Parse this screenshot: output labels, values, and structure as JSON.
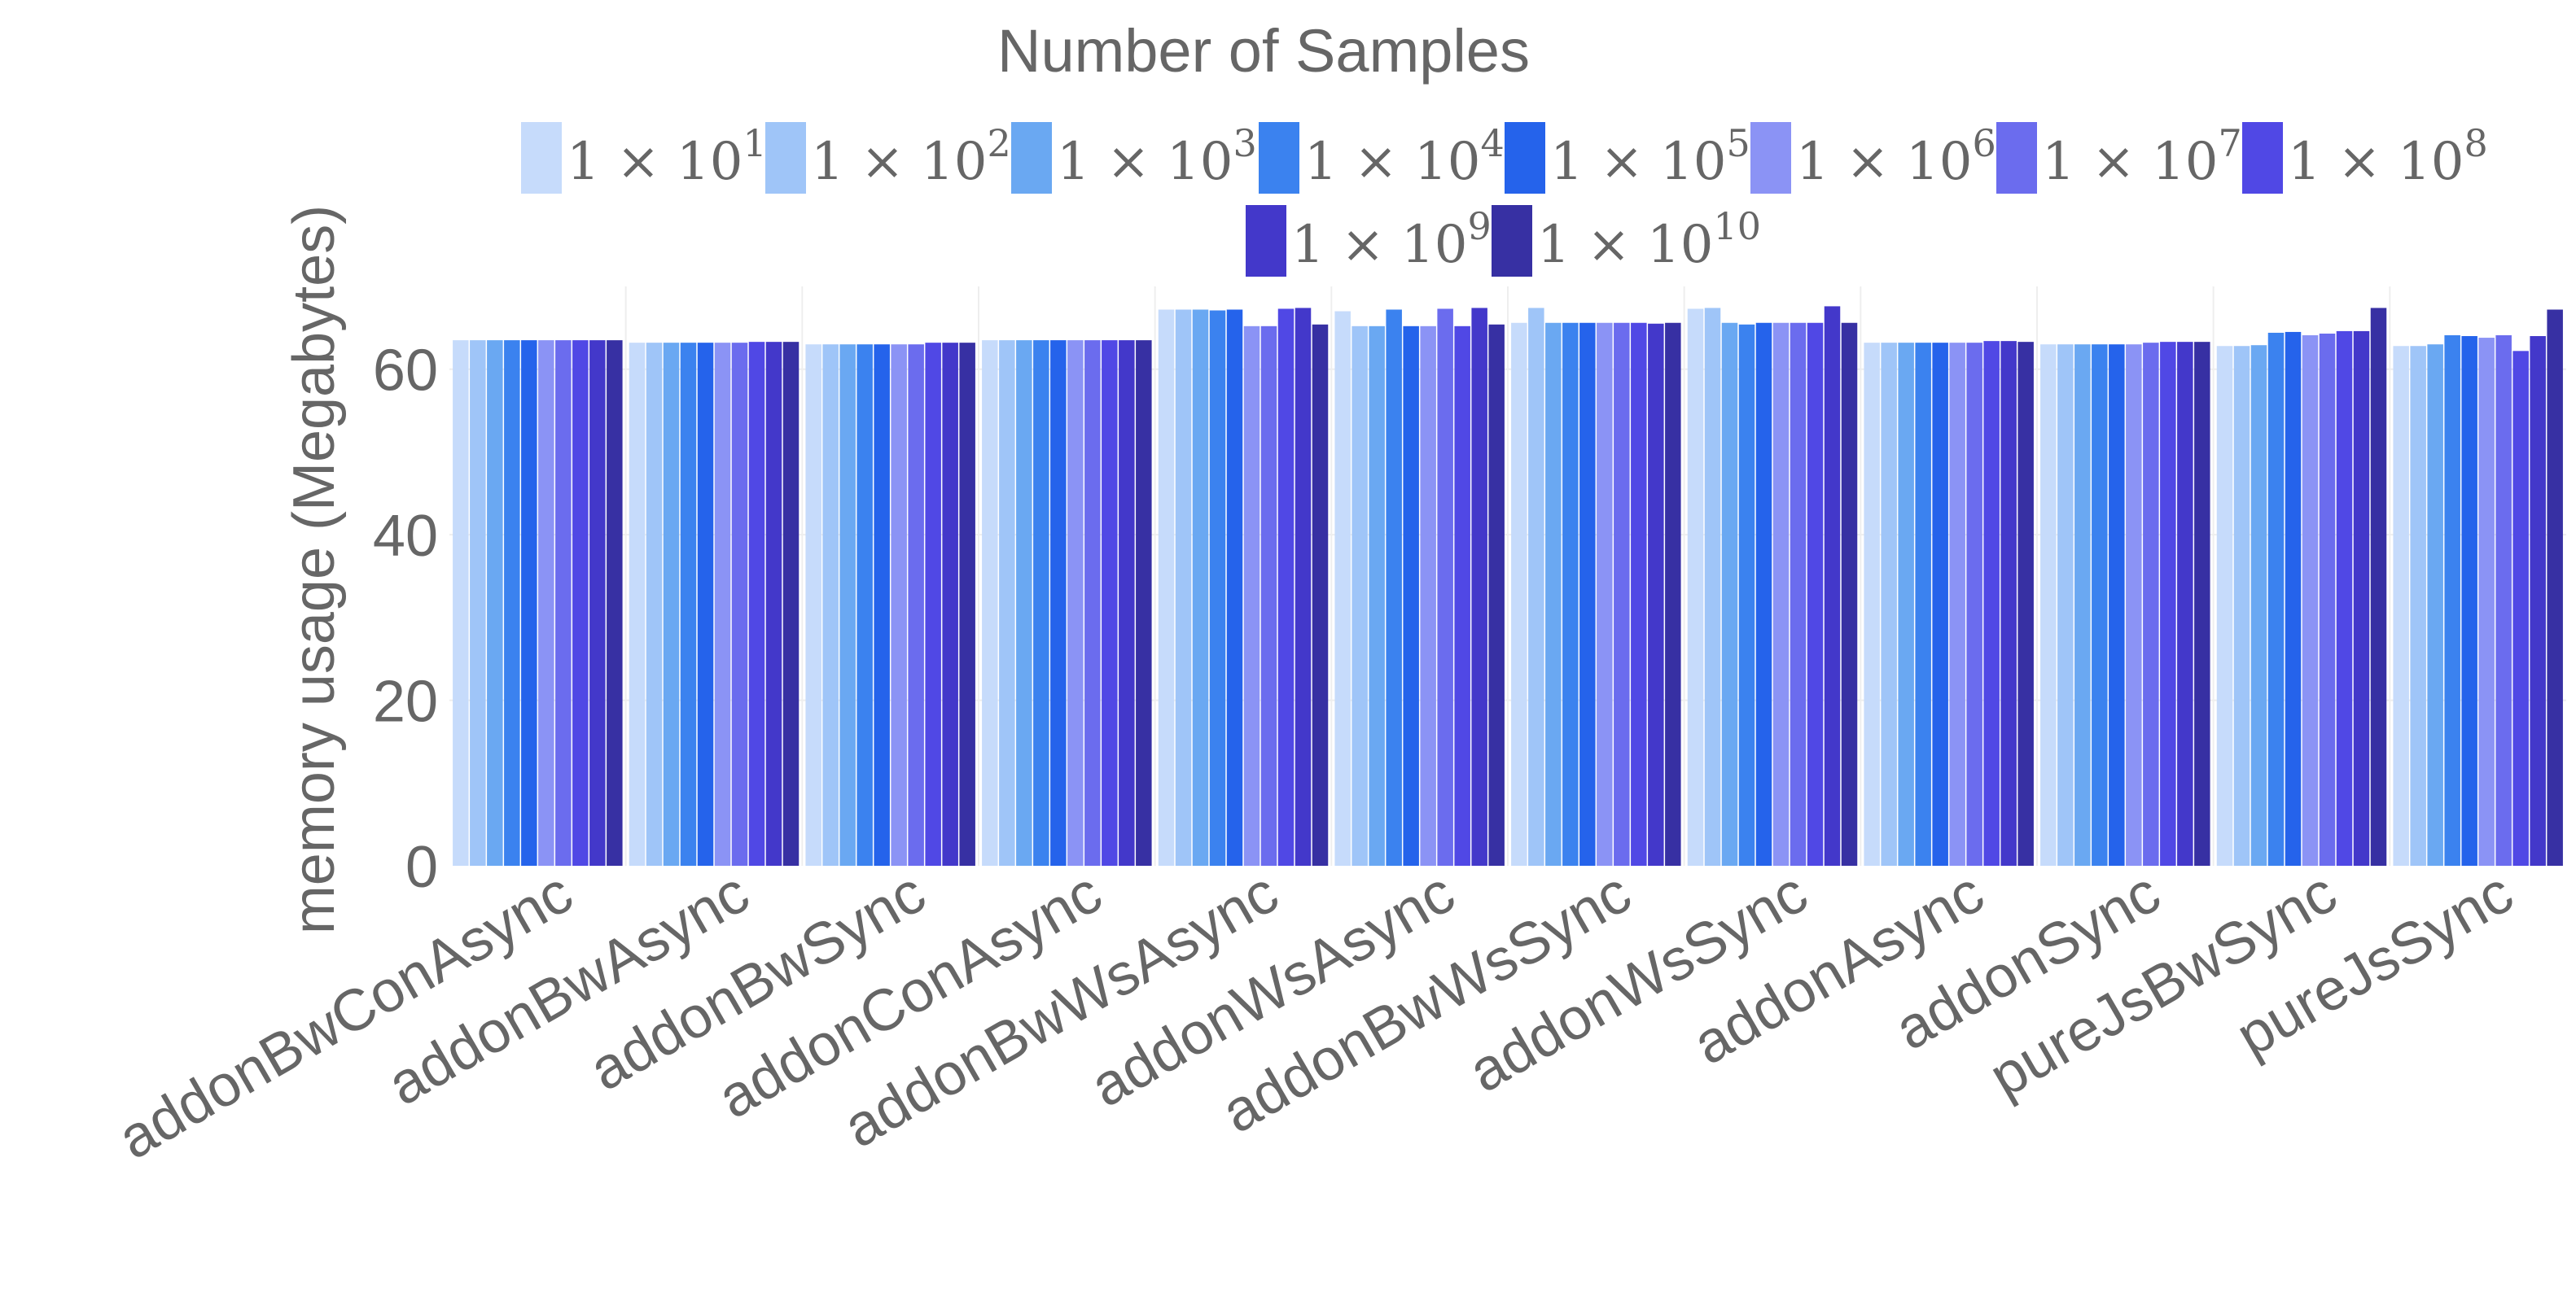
{
  "chart_data": {
    "type": "bar",
    "title": "",
    "legend_title": "Number of Samples",
    "xlabel": "",
    "ylabel": "memory usage (Megabytes)",
    "ylim": [
      0,
      70
    ],
    "yticks": [
      0,
      20,
      40,
      60
    ],
    "grid": true,
    "legend_position": "top",
    "categories": [
      "addonBwConAsync",
      "addonBwAsync",
      "addonBwSync",
      "addonConAsync",
      "addonBwWsAsync",
      "addonWsAsync",
      "addonBwWsSync",
      "addonWsSync",
      "addonAsync",
      "addonSync",
      "pureJsBwSync",
      "pureJsSync"
    ],
    "series": [
      {
        "name": "1 × 10",
        "exponent": "1",
        "color": "#c6dbfb",
        "values": [
          63.5,
          63.2,
          63.0,
          63.5,
          67.2,
          67.0,
          65.6,
          67.3,
          63.2,
          63.0,
          62.8,
          62.8
        ]
      },
      {
        "name": "1 × 10",
        "exponent": "2",
        "color": "#9fc5f8",
        "values": [
          63.5,
          63.2,
          63.0,
          63.5,
          67.2,
          65.2,
          67.4,
          67.4,
          63.2,
          63.0,
          62.8,
          62.8
        ]
      },
      {
        "name": "1 × 10",
        "exponent": "3",
        "color": "#6aa8f2",
        "values": [
          63.5,
          63.2,
          63.0,
          63.5,
          67.2,
          65.2,
          65.6,
          65.6,
          63.2,
          63.0,
          62.9,
          63.0
        ]
      },
      {
        "name": "1 × 10",
        "exponent": "4",
        "color": "#3b82ef",
        "values": [
          63.5,
          63.2,
          63.0,
          63.5,
          67.1,
          67.2,
          65.6,
          65.4,
          63.2,
          63.0,
          64.4,
          64.1
        ]
      },
      {
        "name": "1 × 10",
        "exponent": "5",
        "color": "#2563eb",
        "values": [
          63.5,
          63.2,
          63.0,
          63.5,
          67.2,
          65.2,
          65.6,
          65.6,
          63.2,
          63.0,
          64.5,
          64.0
        ]
      },
      {
        "name": "1 × 10",
        "exponent": "6",
        "color": "#8b93f5",
        "values": [
          63.5,
          63.2,
          63.0,
          63.5,
          65.2,
          65.2,
          65.6,
          65.6,
          63.2,
          63.0,
          64.1,
          63.8
        ]
      },
      {
        "name": "1 × 10",
        "exponent": "7",
        "color": "#6b6cee",
        "values": [
          63.5,
          63.2,
          63.0,
          63.5,
          65.2,
          67.3,
          65.6,
          65.6,
          63.2,
          63.2,
          64.3,
          64.1
        ]
      },
      {
        "name": "1 × 10",
        "exponent": "8",
        "color": "#5048e5",
        "values": [
          63.5,
          63.3,
          63.2,
          63.5,
          67.3,
          65.2,
          65.6,
          65.6,
          63.4,
          63.3,
          64.6,
          62.2
        ]
      },
      {
        "name": "1 × 10",
        "exponent": "9",
        "color": "#4338ca",
        "values": [
          63.5,
          63.3,
          63.2,
          63.5,
          67.4,
          67.4,
          65.5,
          67.6,
          63.4,
          63.3,
          64.6,
          64.0
        ]
      },
      {
        "name": "1 × 10",
        "exponent": "10",
        "color": "#3730a3",
        "values": [
          63.5,
          63.3,
          63.2,
          63.5,
          65.4,
          65.4,
          65.6,
          65.6,
          63.3,
          63.3,
          67.4,
          67.2
        ]
      }
    ]
  }
}
